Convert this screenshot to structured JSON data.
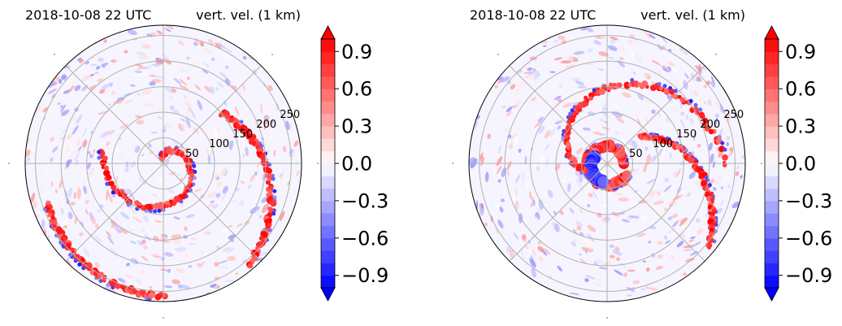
{
  "chart_data": [
    {
      "type": "heatmap",
      "projection": "polar",
      "title_left": "2018-10-08 22 UTC",
      "title_right": "vert. vel. (1 km)",
      "title_left_color": "#0000ff",
      "radial_ticks": [
        "50",
        "100",
        "150",
        "200",
        "250"
      ],
      "radial_values": [
        50,
        100,
        150,
        200,
        250
      ],
      "radial_max": 270,
      "radial_label_angle_deg": 22.5,
      "theta_grid_deg": [
        0,
        45,
        90,
        135,
        180,
        225,
        270,
        315
      ],
      "grid": true,
      "colorbar": {
        "cmap": "bwr",
        "vmin": -1.0,
        "vmax": 1.0,
        "levels": 21,
        "extend": "both",
        "tick_values": [
          0.9,
          0.6,
          0.3,
          0.0,
          -0.3,
          -0.6,
          -0.9
        ],
        "tick_labels": [
          "0.9",
          "0.6",
          "0.3",
          "0.0",
          "−0.3",
          "−0.6",
          "−0.9"
        ]
      },
      "field_features": [
        {
          "kind": "spiral_band",
          "sign": "positive",
          "r_start": 10,
          "r_end": 120,
          "theta_start_deg": 110,
          "turn_deg": -300
        },
        {
          "kind": "spiral_band",
          "sign": "positive",
          "r_start": 150,
          "r_end": 260,
          "theta_start_deg": 40,
          "turn_deg": -90
        },
        {
          "kind": "arc_band",
          "sign": "positive",
          "r_start": 240,
          "r_end": 260,
          "theta_start_deg": 200,
          "turn_deg": 70
        }
      ]
    },
    {
      "type": "heatmap",
      "projection": "polar",
      "title_left": "2018-10-08 22 UTC",
      "title_right": "vert. vel. (1 km)",
      "title_left_color": "#0000ff",
      "radial_ticks": [
        "50",
        "100",
        "150",
        "200",
        "250"
      ],
      "radial_values": [
        50,
        100,
        150,
        200,
        250
      ],
      "radial_max": 270,
      "radial_label_angle_deg": 22.5,
      "theta_grid_deg": [
        0,
        45,
        90,
        135,
        180,
        225,
        270,
        315
      ],
      "grid": true,
      "colorbar": {
        "cmap": "bwr",
        "vmin": -1.0,
        "vmax": 1.0,
        "levels": 21,
        "extend": "both",
        "tick_values": [
          0.9,
          0.6,
          0.3,
          0.0,
          -0.3,
          -0.6,
          -0.9
        ],
        "tick_labels": [
          "0.9",
          "0.6",
          "0.3",
          "0.0",
          "−0.3",
          "−0.6",
          "−0.9"
        ]
      },
      "field_features": [
        {
          "kind": "eyewall_ring",
          "sign": "positive",
          "r_start": 30,
          "r_end": 45,
          "theta_start_deg": 0,
          "turn_deg": 330
        },
        {
          "kind": "eyewall_ring",
          "sign": "negative",
          "r_start": 28,
          "r_end": 38,
          "theta_start_deg": 150,
          "turn_deg": 110
        },
        {
          "kind": "spiral_band",
          "sign": "positive",
          "r_start": 45,
          "r_end": 230,
          "theta_start_deg": 200,
          "turn_deg": -200
        },
        {
          "kind": "spiral_band",
          "sign": "positive",
          "r_start": 80,
          "r_end": 260,
          "theta_start_deg": 40,
          "turn_deg": -80
        }
      ]
    }
  ]
}
